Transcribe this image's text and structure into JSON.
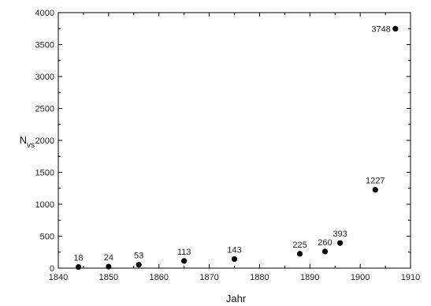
{
  "chart_data": {
    "type": "scatter",
    "title": "",
    "xlabel": "Jahr",
    "ylabel_main": "N",
    "ylabel_sub": "vs",
    "xlim": [
      1840,
      1910
    ],
    "ylim": [
      0,
      4000
    ],
    "xticks": [
      1840,
      1850,
      1860,
      1870,
      1880,
      1890,
      1900,
      1910
    ],
    "yticks": [
      0,
      500,
      1000,
      1500,
      2000,
      2500,
      3000,
      3500,
      4000
    ],
    "grid": false,
    "legend": "none",
    "marker_color": "#000000",
    "points": [
      {
        "x": 1844,
        "y": 18,
        "label": "18"
      },
      {
        "x": 1850,
        "y": 24,
        "label": "24"
      },
      {
        "x": 1856,
        "y": 53,
        "label": "53"
      },
      {
        "x": 1865,
        "y": 113,
        "label": "113"
      },
      {
        "x": 1875,
        "y": 143,
        "label": "143"
      },
      {
        "x": 1888,
        "y": 225,
        "label": "225"
      },
      {
        "x": 1893,
        "y": 260,
        "label": "260"
      },
      {
        "x": 1896,
        "y": 393,
        "label": "393"
      },
      {
        "x": 1903,
        "y": 1227,
        "label": "1227"
      },
      {
        "x": 1907,
        "y": 3748,
        "label": "3748"
      }
    ]
  }
}
